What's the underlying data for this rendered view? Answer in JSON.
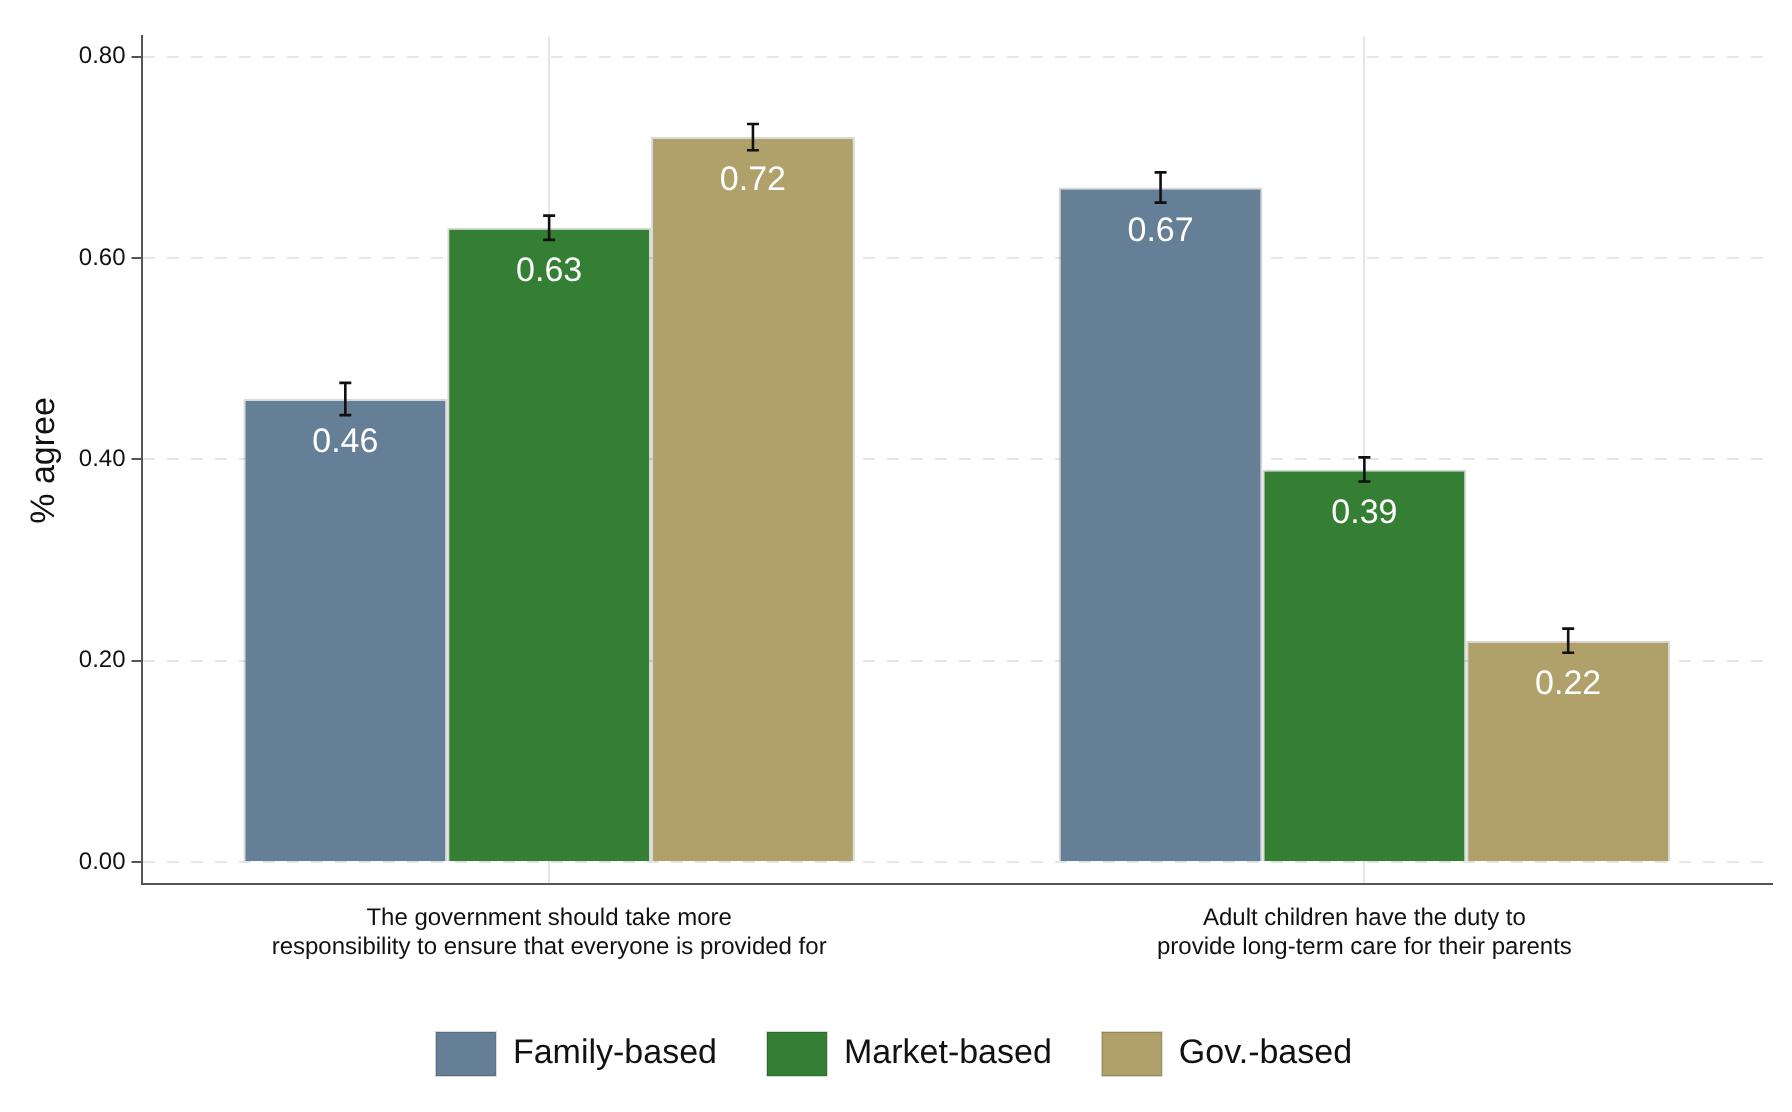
{
  "chart_data": {
    "type": "bar",
    "ylabel": "% agree",
    "categories": [
      "The government should take more\nresponsibility to ensure that everyone is provided for",
      "Adult children have the duty to\nprovide long-term care for their parents"
    ],
    "series": [
      {
        "name": "Family-based",
        "color": "#647f96",
        "values": [
          0.46,
          0.67
        ],
        "errors": [
          0.016,
          0.015
        ]
      },
      {
        "name": "Market-based",
        "color": "#347f33",
        "values": [
          0.63,
          0.39
        ],
        "errors": [
          0.012,
          0.012
        ]
      },
      {
        "name": "Gov.-based",
        "color": "#b0a16b",
        "values": [
          0.72,
          0.22
        ],
        "errors": [
          0.013,
          0.012
        ]
      }
    ],
    "ylim": [
      -0.022,
      0.82
    ],
    "yticks": [
      {
        "value": 0,
        "label": "0.00"
      },
      {
        "value": 0.2,
        "label": "0.20"
      },
      {
        "value": 0.4,
        "label": "0.40"
      },
      {
        "value": 0.6,
        "label": "0.60"
      },
      {
        "value": 0.8,
        "label": "0.80"
      }
    ],
    "grid": true,
    "legend": "bottom",
    "data_labels": true
  }
}
